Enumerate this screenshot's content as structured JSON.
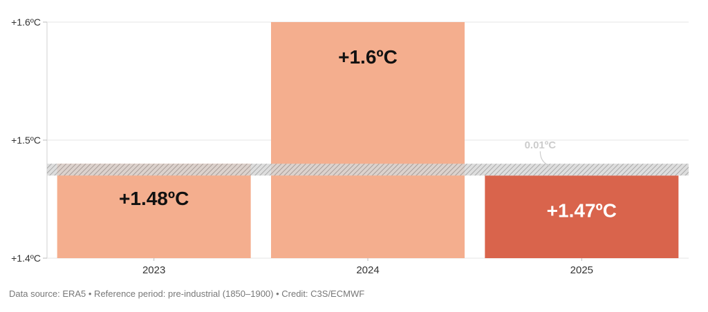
{
  "chart_data": {
    "type": "bar",
    "categories": [
      "2023",
      "2024",
      "2025"
    ],
    "values": [
      1.48,
      1.6,
      1.47
    ],
    "data_labels": [
      "+1.48ºC",
      "+1.6ºC",
      "+1.47ºC"
    ],
    "highlight_index": 2,
    "ylim": [
      1.4,
      1.6
    ],
    "yticks": [
      1.4,
      1.5,
      1.6
    ],
    "ytick_labels": [
      "+1.4ºC",
      "+1.5ºC",
      "+1.6ºC"
    ],
    "band": {
      "from": 1.47,
      "to": 1.48
    },
    "annotation": "0.01ºC",
    "grid": true,
    "colors": {
      "bar": "#f4ae8e",
      "highlight": "#d9644c",
      "label_dark": "#111111",
      "label_light": "#ffffff",
      "grid": "#e6e6e6",
      "band": "#9a9a9a"
    }
  },
  "footer": "Data source: ERA5 • Reference period: pre-industrial (1850–1900) • Credit: C3S/ECMWF"
}
